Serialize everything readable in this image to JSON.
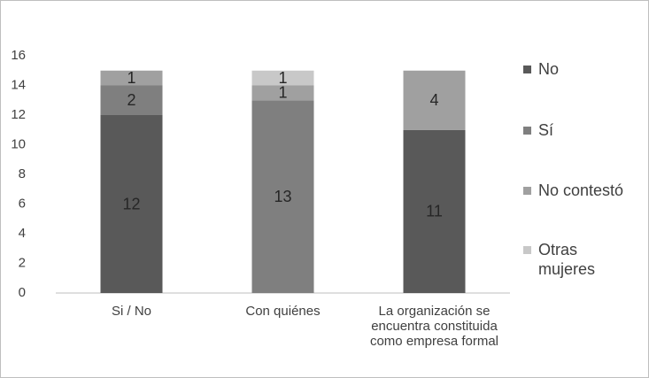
{
  "chart_data": {
    "type": "stacked_bar",
    "categories": [
      "Si / No",
      "Con quiénes",
      "La organización se encuentra constituida como empresa formal"
    ],
    "series": [
      {
        "name": "No",
        "color": "#595959",
        "values": [
          12,
          null,
          11
        ]
      },
      {
        "name": "Sí",
        "color": "#7f7f7f",
        "values": [
          2,
          13,
          null
        ]
      },
      {
        "name": "No contestó",
        "color": "#a0a0a0",
        "values": [
          1,
          1,
          4
        ]
      },
      {
        "name": "Otras mujeres",
        "color": "#c8c8c8",
        "values": [
          null,
          1,
          null
        ]
      }
    ],
    "ylim": [
      0,
      16
    ],
    "yticks": [
      0,
      2,
      4,
      6,
      8,
      10,
      12,
      14,
      16
    ],
    "grid": false,
    "legend": "right"
  }
}
